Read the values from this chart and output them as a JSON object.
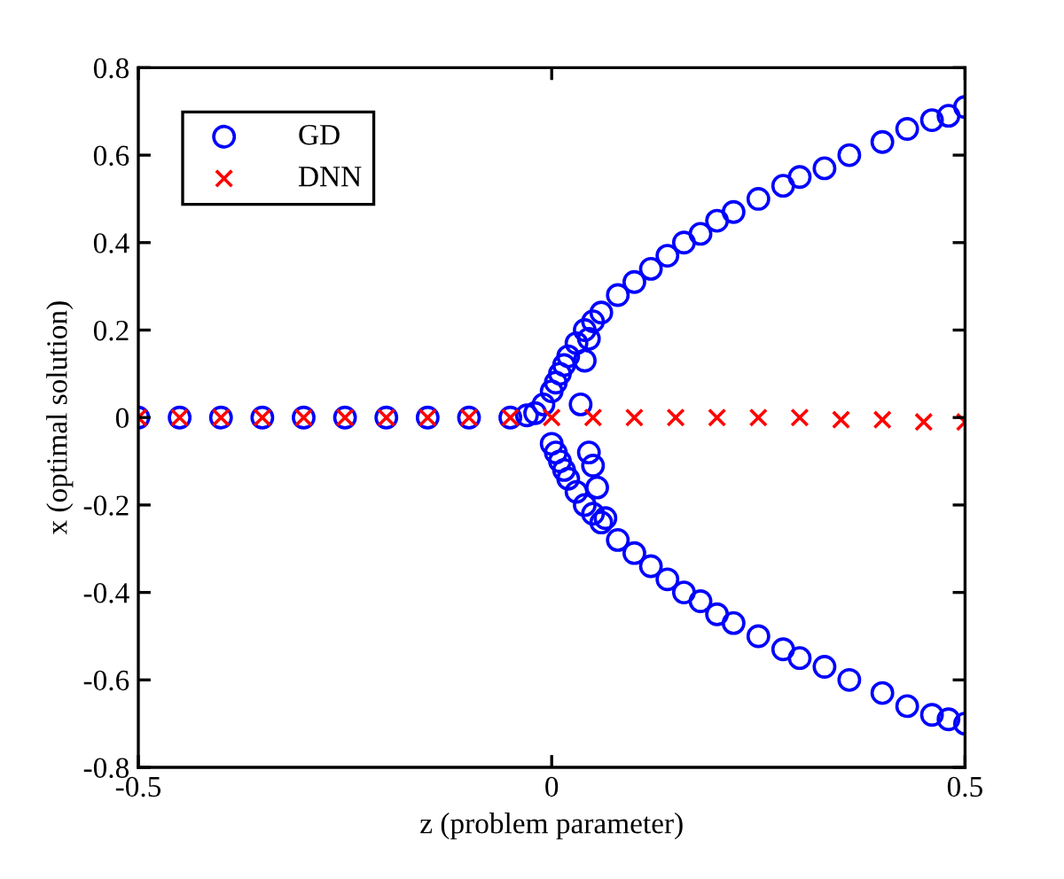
{
  "chart_data": {
    "type": "scatter",
    "xlabel": "z (problem parameter)",
    "ylabel": "x (optimal solution)",
    "xlim": [
      -0.5,
      0.5
    ],
    "xticks": [
      -0.5,
      0,
      0.5
    ],
    "ylim": [
      -0.8,
      0.8
    ],
    "yticks": [
      -0.8,
      -0.6,
      -0.4,
      -0.2,
      0,
      0.2,
      0.4,
      0.6,
      0.8
    ],
    "grid": false,
    "legend": "top left",
    "series": [
      {
        "name": "GD",
        "color": "#0000ff",
        "marker": "circle",
        "x": [
          -0.5,
          -0.45,
          -0.4,
          -0.35,
          -0.3,
          -0.25,
          -0.2,
          -0.15,
          -0.1,
          -0.05,
          -0.03,
          -0.02,
          -0.01,
          0,
          0.005,
          0.01,
          0.015,
          0.02,
          0.03,
          0.04,
          0.05,
          0.06,
          0.08,
          0.1,
          0.12,
          0.14,
          0.16,
          0.18,
          0.2,
          0.22,
          0.25,
          0.28,
          0.3,
          0.33,
          0.36,
          0.4,
          0.43,
          0.46,
          0.48,
          0.5,
          0,
          0.005,
          0.01,
          0.015,
          0.02,
          0.03,
          0.04,
          0.05,
          0.06,
          0.08,
          0.1,
          0.12,
          0.14,
          0.16,
          0.18,
          0.2,
          0.22,
          0.25,
          0.28,
          0.3,
          0.33,
          0.36,
          0.4,
          0.43,
          0.46,
          0.48,
          0.5,
          0.04,
          0.045,
          0.035,
          0.045,
          0.05,
          0.055,
          0.065
        ],
        "values": [
          0,
          0,
          0,
          0,
          0,
          0,
          0,
          0,
          0,
          0,
          0.005,
          0.01,
          0.03,
          0.06,
          0.08,
          0.1,
          0.12,
          0.14,
          0.17,
          0.2,
          0.22,
          0.24,
          0.28,
          0.31,
          0.34,
          0.37,
          0.4,
          0.42,
          0.45,
          0.47,
          0.5,
          0.53,
          0.55,
          0.57,
          0.6,
          0.63,
          0.66,
          0.68,
          0.69,
          0.71,
          -0.06,
          -0.08,
          -0.1,
          -0.12,
          -0.14,
          -0.17,
          -0.2,
          -0.22,
          -0.24,
          -0.28,
          -0.31,
          -0.34,
          -0.37,
          -0.4,
          -0.42,
          -0.45,
          -0.47,
          -0.5,
          -0.53,
          -0.55,
          -0.57,
          -0.6,
          -0.63,
          -0.66,
          -0.68,
          -0.69,
          -0.7,
          0.13,
          0.18,
          0.03,
          -0.08,
          -0.11,
          -0.16,
          -0.23
        ]
      },
      {
        "name": "DNN",
        "color": "#ff0000",
        "marker": "cross",
        "x": [
          -0.5,
          -0.45,
          -0.4,
          -0.35,
          -0.3,
          -0.25,
          -0.2,
          -0.15,
          -0.1,
          -0.05,
          0,
          0.05,
          0.1,
          0.15,
          0.2,
          0.25,
          0.3,
          0.35,
          0.4,
          0.45,
          0.5
        ],
        "values": [
          0,
          0,
          0,
          0,
          0,
          0,
          0,
          0,
          0,
          0,
          0,
          0,
          0,
          0,
          0,
          0,
          0,
          -0.005,
          -0.005,
          -0.01,
          -0.01
        ]
      }
    ]
  }
}
